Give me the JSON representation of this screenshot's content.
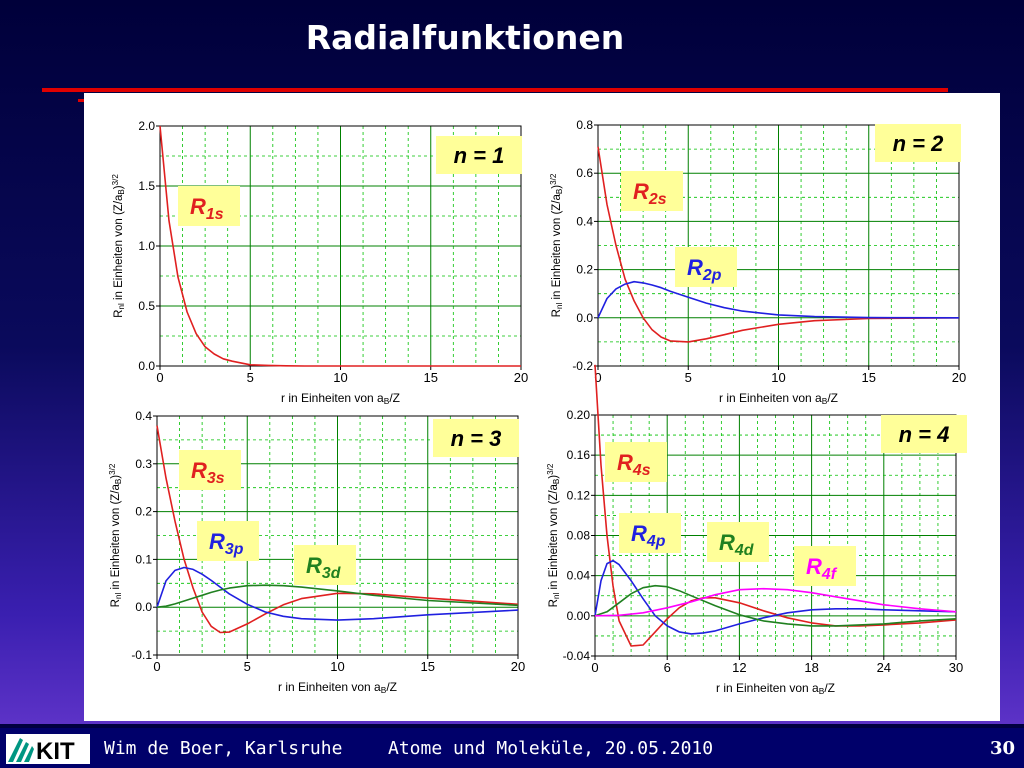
{
  "slide": {
    "title": "Radialfunktionen",
    "footer_author": "Wim de Boer, Karlsruhe",
    "footer_course": "Atome und Moleküle,  20.05.2010",
    "page_number": "30",
    "logo_text": "KIT"
  },
  "colors": {
    "red": "#e02020",
    "blue": "#2020e0",
    "green": "#208020",
    "magenta": "#ff00ff",
    "label_bg": "#ffff99",
    "grid": "#00a000"
  },
  "chart_data": [
    {
      "type": "line",
      "title": "n = 1",
      "xlabel": "r in Einheiten von a_B/Z",
      "ylabel": "R_nl in Einheiten von (Z/a_B)^3/2",
      "xlim": [
        0,
        20
      ],
      "ylim": [
        0,
        2.0
      ],
      "xticks": [
        0,
        5,
        10,
        15,
        20
      ],
      "yticks": [
        "0.0",
        "0.5",
        "1.0",
        "1.5",
        "2.0"
      ],
      "grid": true,
      "series": [
        {
          "name": "R1s",
          "label_main": "R",
          "label_sub": "1s",
          "color": "#e02020",
          "x": [
            0,
            0.5,
            1,
            1.5,
            2,
            2.5,
            3,
            3.5,
            4,
            5,
            6,
            7,
            8,
            10,
            12,
            15,
            20
          ],
          "y": [
            2.0,
            1.21,
            0.74,
            0.45,
            0.27,
            0.16,
            0.1,
            0.06,
            0.04,
            0.01,
            0.005,
            0.002,
            0.0,
            0.0,
            0.0,
            0.0,
            0.0
          ]
        }
      ]
    },
    {
      "type": "line",
      "title": "n = 2",
      "xlabel": "r in Einheiten von a_B/Z",
      "ylabel": "R_nl in Einheiten von (Z/a_B)^3/2",
      "xlim": [
        0,
        20
      ],
      "ylim": [
        -0.2,
        0.8
      ],
      "xticks": [
        0,
        5,
        10,
        15,
        20
      ],
      "yticks": [
        "-0.2",
        "0.0",
        "0.2",
        "0.4",
        "0.6",
        "0.8"
      ],
      "grid": true,
      "series": [
        {
          "name": "R2s",
          "label_main": "R",
          "label_sub": "2s",
          "color": "#e02020",
          "x": [
            0,
            0.5,
            1,
            1.5,
            2,
            2.5,
            3,
            3.5,
            4,
            5,
            6,
            7,
            8,
            10,
            12,
            15,
            20
          ],
          "y": [
            0.71,
            0.47,
            0.3,
            0.16,
            0.07,
            0.0,
            -0.05,
            -0.08,
            -0.096,
            -0.1,
            -0.087,
            -0.07,
            -0.052,
            -0.027,
            -0.012,
            -0.003,
            0.0
          ]
        },
        {
          "name": "R2p",
          "label_main": "R",
          "label_sub": "2p",
          "color": "#2020e0",
          "x": [
            0,
            0.5,
            1,
            1.5,
            2,
            2.5,
            3,
            3.5,
            4,
            5,
            6,
            7,
            8,
            10,
            12,
            15,
            20
          ],
          "y": [
            0.0,
            0.08,
            0.12,
            0.14,
            0.15,
            0.145,
            0.136,
            0.125,
            0.11,
            0.085,
            0.061,
            0.042,
            0.028,
            0.012,
            0.005,
            0.001,
            0.0
          ]
        }
      ]
    },
    {
      "type": "line",
      "title": "n = 3",
      "xlabel": "r in Einheiten von a_B/Z",
      "ylabel": "R_nl in Einheiten von (Z/a_B)^3/2",
      "xlim": [
        0,
        20
      ],
      "ylim": [
        -0.1,
        0.4
      ],
      "xticks": [
        0,
        5,
        10,
        15,
        20
      ],
      "yticks": [
        "-0.1",
        "0.0",
        "0.1",
        "0.2",
        "0.3",
        "0.4"
      ],
      "grid": true,
      "series": [
        {
          "name": "R3s",
          "label_main": "R",
          "label_sub": "3s",
          "color": "#e02020",
          "x": [
            0,
            0.5,
            1,
            1.5,
            2,
            2.5,
            3,
            3.5,
            4,
            5,
            6,
            7,
            8,
            10,
            12,
            15,
            20
          ],
          "y": [
            0.38,
            0.27,
            0.18,
            0.1,
            0.04,
            -0.01,
            -0.04,
            -0.053,
            -0.052,
            -0.035,
            -0.014,
            0.005,
            0.018,
            0.029,
            0.028,
            0.019,
            0.006
          ]
        },
        {
          "name": "R3p",
          "label_main": "R",
          "label_sub": "3p",
          "color": "#2020e0",
          "x": [
            0,
            0.5,
            1,
            1.5,
            2,
            2.5,
            3,
            3.5,
            4,
            5,
            6,
            7,
            8,
            10,
            12,
            15,
            20
          ],
          "y": [
            0.0,
            0.055,
            0.077,
            0.083,
            0.079,
            0.069,
            0.056,
            0.042,
            0.028,
            0.006,
            -0.01,
            -0.019,
            -0.024,
            -0.027,
            -0.024,
            -0.016,
            -0.006
          ]
        },
        {
          "name": "R3d",
          "label_main": "R",
          "label_sub": "3d",
          "color": "#208020",
          "x": [
            0,
            0.5,
            1,
            1.5,
            2,
            2.5,
            3,
            3.5,
            4,
            5,
            6,
            7,
            8,
            10,
            12,
            15,
            20
          ],
          "y": [
            0.0,
            0.002,
            0.007,
            0.013,
            0.019,
            0.025,
            0.031,
            0.036,
            0.04,
            0.045,
            0.046,
            0.045,
            0.042,
            0.034,
            0.025,
            0.014,
            0.004
          ]
        }
      ]
    },
    {
      "type": "line",
      "title": "n = 4",
      "xlabel": "r in Einheiten von a_B/Z",
      "ylabel": "R_nl in Einheiten von (Z/a_B)^3/2",
      "xlim": [
        0,
        30
      ],
      "ylim": [
        -0.04,
        0.2
      ],
      "xticks": [
        0,
        6,
        12,
        18,
        24,
        30
      ],
      "yticks": [
        "-0.04",
        "0.00",
        "0.04",
        "0.08",
        "0.12",
        "0.16",
        "0.20"
      ],
      "grid": true,
      "series": [
        {
          "name": "R4s",
          "label_main": "R",
          "label_sub": "4s",
          "color": "#e02020",
          "x": [
            0,
            0.5,
            1,
            1.5,
            2,
            3,
            4,
            5,
            6,
            7,
            8,
            9,
            10,
            12,
            14,
            16,
            18,
            20,
            22,
            24,
            27,
            30
          ],
          "y": [
            0.25,
            0.15,
            0.08,
            0.03,
            -0.005,
            -0.03,
            -0.029,
            -0.016,
            -0.003,
            0.008,
            0.015,
            0.018,
            0.018,
            0.013,
            0.005,
            -0.002,
            -0.007,
            -0.01,
            -0.01,
            -0.009,
            -0.007,
            -0.004
          ]
        },
        {
          "name": "R4p",
          "label_main": "R",
          "label_sub": "4p",
          "color": "#2020e0",
          "x": [
            0,
            0.5,
            1,
            1.5,
            2,
            3,
            4,
            5,
            6,
            7,
            8,
            9,
            10,
            12,
            14,
            16,
            18,
            20,
            22,
            24,
            27,
            30
          ],
          "y": [
            0.0,
            0.035,
            0.052,
            0.055,
            0.051,
            0.035,
            0.017,
            0.0,
            -0.01,
            -0.016,
            -0.018,
            -0.017,
            -0.015,
            -0.008,
            -0.002,
            0.003,
            0.006,
            0.007,
            0.007,
            0.006,
            0.005,
            0.004
          ]
        },
        {
          "name": "R4d",
          "label_main": "R",
          "label_sub": "4d",
          "color": "#208020",
          "x": [
            0,
            1,
            2,
            3,
            4,
            5,
            6,
            7,
            8,
            10,
            12,
            14,
            16,
            18,
            20,
            22,
            24,
            27,
            30
          ],
          "y": [
            0.0,
            0.004,
            0.013,
            0.022,
            0.028,
            0.03,
            0.029,
            0.025,
            0.02,
            0.01,
            0.001,
            -0.005,
            -0.008,
            -0.01,
            -0.01,
            -0.009,
            -0.008,
            -0.005,
            -0.003
          ]
        },
        {
          "name": "R4f",
          "label_main": "R",
          "label_sub": "4f",
          "color": "#ff00ff",
          "x": [
            0,
            2,
            4,
            6,
            8,
            10,
            12,
            14,
            16,
            18,
            20,
            22,
            24,
            27,
            30
          ],
          "y": [
            0.0,
            0.0005,
            0.003,
            0.008,
            0.014,
            0.021,
            0.026,
            0.027,
            0.026,
            0.023,
            0.019,
            0.015,
            0.011,
            0.007,
            0.004
          ]
        }
      ]
    }
  ]
}
